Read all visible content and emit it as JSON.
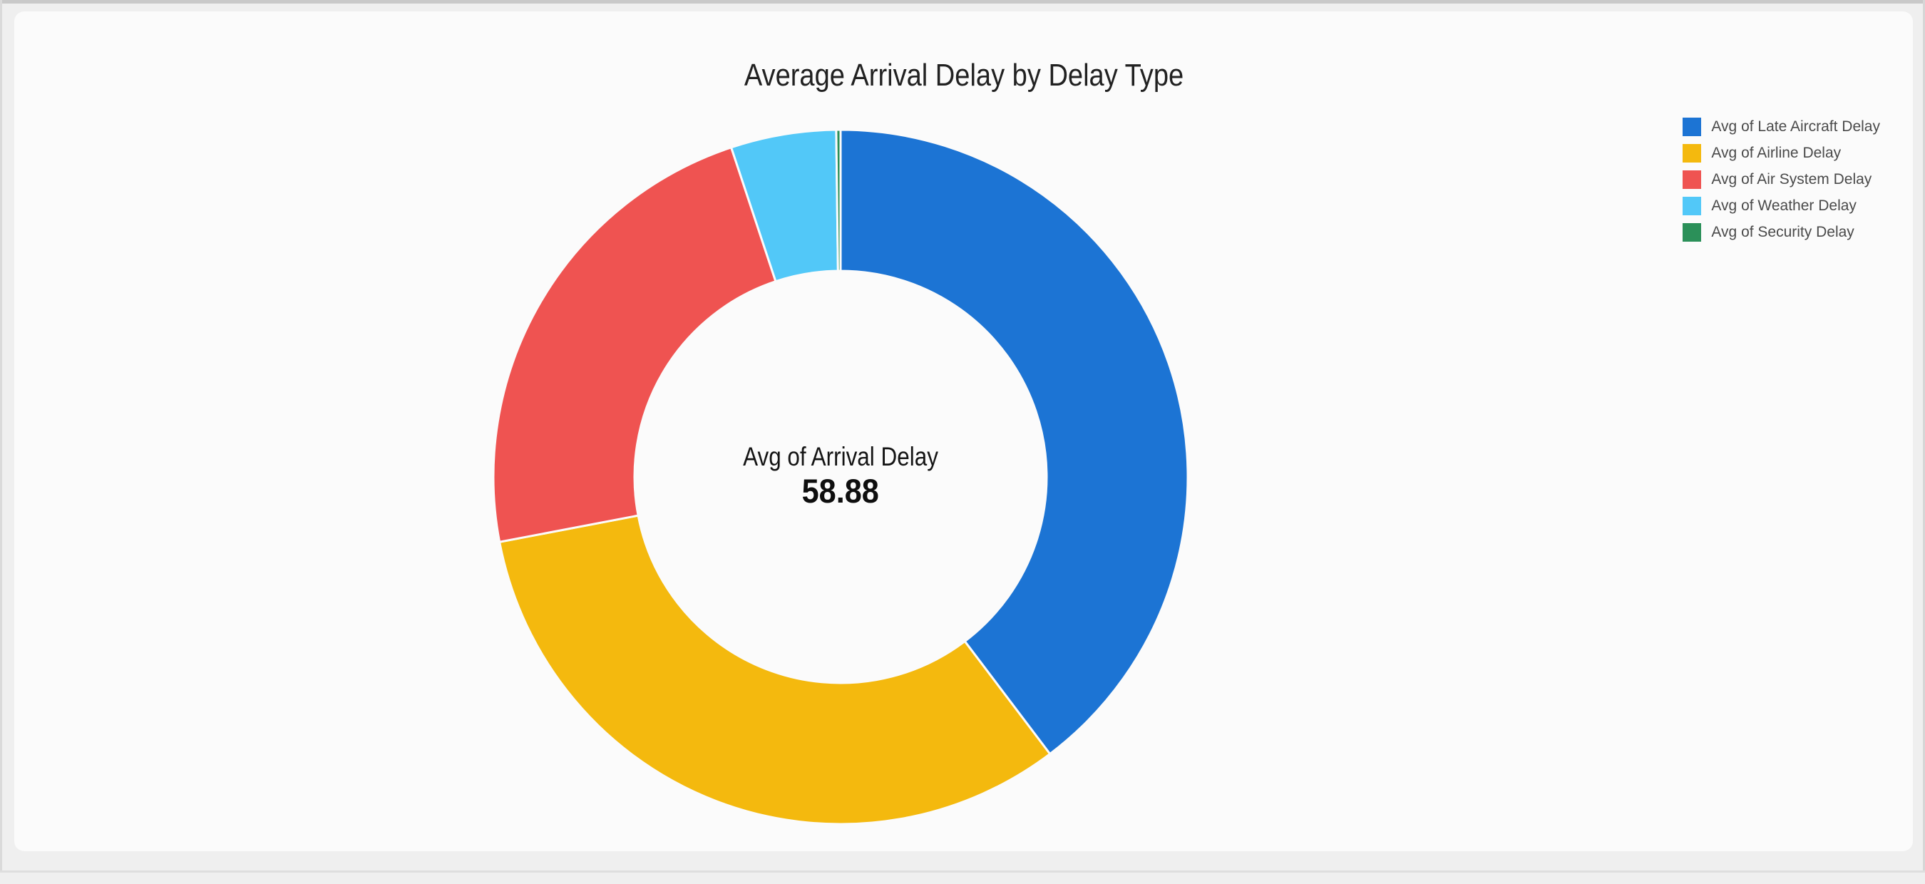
{
  "page": {
    "background_color": "#EFEFEF",
    "card_background_color": "#FBFBFB",
    "top_edge_color": "#C9C9C9"
  },
  "chart_data": {
    "type": "pie",
    "subtype": "donut",
    "title": "Average Arrival Delay by Delay Type",
    "center_label": "Avg of Arrival Delay",
    "center_value": "58.88",
    "legend_position": "top-right",
    "grid": false,
    "total": 58.88,
    "series": [
      {
        "name": "Avg of Late Aircraft Delay",
        "color": "#1C74D4",
        "share_pct": 39.7,
        "approx_value": 23.4
      },
      {
        "name": "Avg of Airline Delay",
        "color": "#F4B90E",
        "share_pct": 32.3,
        "approx_value": 19.0
      },
      {
        "name": "Avg of Air System Delay",
        "color": "#EF5351",
        "share_pct": 22.9,
        "approx_value": 13.5
      },
      {
        "name": "Avg of Weather Delay",
        "color": "#52C8F8",
        "share_pct": 4.9,
        "approx_value": 2.9
      },
      {
        "name": "Avg of Security Delay",
        "color": "#2B9059",
        "share_pct": 0.2,
        "approx_value": 0.1
      }
    ]
  }
}
